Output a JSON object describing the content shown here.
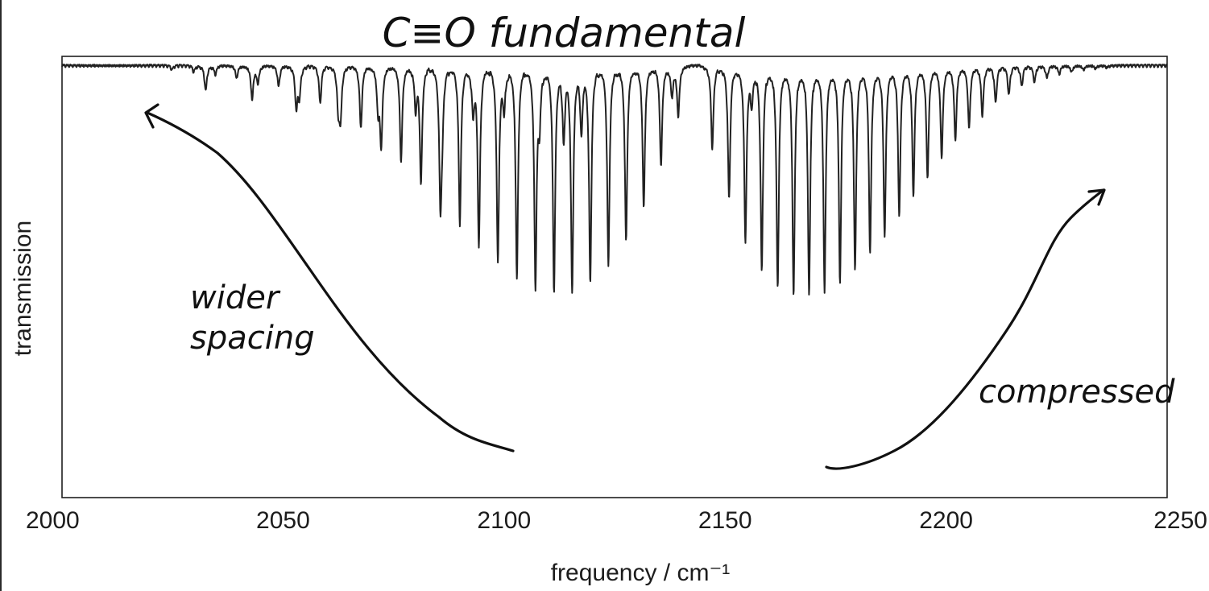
{
  "chart_data": {
    "type": "line",
    "title": "C≡O fundamental",
    "xlabel": "frequency / cm⁻¹",
    "ylabel": "transmission",
    "xlim": [
      2000,
      2250
    ],
    "x_ticks": [
      2000,
      2050,
      2100,
      2150,
      2200,
      2250
    ],
    "y_ticks": [],
    "ylim": [
      0,
      1
    ],
    "grid": false,
    "legend": "none",
    "band_center": 2143,
    "series": [
      {
        "style": "absorption dips",
        "p_branch_lines": [
          {
            "x": 2139.4,
            "y": 0.88
          },
          {
            "x": 2135.5,
            "y": 0.76
          },
          {
            "x": 2131.6,
            "y": 0.66
          },
          {
            "x": 2127.6,
            "y": 0.58
          },
          {
            "x": 2123.6,
            "y": 0.52
          },
          {
            "x": 2119.5,
            "y": 0.48
          },
          {
            "x": 2115.4,
            "y": 0.46
          },
          {
            "x": 2111.3,
            "y": 0.46
          },
          {
            "x": 2107.1,
            "y": 0.47
          },
          {
            "x": 2102.9,
            "y": 0.49
          },
          {
            "x": 2098.6,
            "y": 0.53
          },
          {
            "x": 2094.3,
            "y": 0.57
          },
          {
            "x": 2090.0,
            "y": 0.62
          },
          {
            "x": 2085.6,
            "y": 0.67
          },
          {
            "x": 2081.2,
            "y": 0.72
          },
          {
            "x": 2076.7,
            "y": 0.77
          },
          {
            "x": 2072.2,
            "y": 0.81
          },
          {
            "x": 2067.6,
            "y": 0.85
          },
          {
            "x": 2063.0,
            "y": 0.88
          },
          {
            "x": 2058.4,
            "y": 0.91
          },
          {
            "x": 2053.7,
            "y": 0.93
          },
          {
            "x": 2049.0,
            "y": 0.95
          },
          {
            "x": 2044.3,
            "y": 0.96
          },
          {
            "x": 2039.5,
            "y": 0.97
          },
          {
            "x": 2034.7,
            "y": 0.98
          },
          {
            "x": 2029.8,
            "y": 0.985
          },
          {
            "x": 2024.9,
            "y": 0.99
          }
        ],
        "r_branch_lines": [
          {
            "x": 2147.1,
            "y": 0.8
          },
          {
            "x": 2150.9,
            "y": 0.68
          },
          {
            "x": 2154.6,
            "y": 0.58
          },
          {
            "x": 2158.3,
            "y": 0.51
          },
          {
            "x": 2161.9,
            "y": 0.47
          },
          {
            "x": 2165.5,
            "y": 0.45
          },
          {
            "x": 2169.0,
            "y": 0.45
          },
          {
            "x": 2172.5,
            "y": 0.46
          },
          {
            "x": 2176.0,
            "y": 0.48
          },
          {
            "x": 2179.4,
            "y": 0.51
          },
          {
            "x": 2182.8,
            "y": 0.55
          },
          {
            "x": 2186.1,
            "y": 0.59
          },
          {
            "x": 2189.4,
            "y": 0.64
          },
          {
            "x": 2192.6,
            "y": 0.69
          },
          {
            "x": 2195.8,
            "y": 0.73
          },
          {
            "x": 2199.0,
            "y": 0.78
          },
          {
            "x": 2202.1,
            "y": 0.82
          },
          {
            "x": 2205.2,
            "y": 0.85
          },
          {
            "x": 2208.2,
            "y": 0.88
          },
          {
            "x": 2211.2,
            "y": 0.91
          },
          {
            "x": 2214.2,
            "y": 0.93
          },
          {
            "x": 2217.1,
            "y": 0.95
          },
          {
            "x": 2220.0,
            "y": 0.96
          },
          {
            "x": 2222.8,
            "y": 0.97
          },
          {
            "x": 2225.6,
            "y": 0.98
          },
          {
            "x": 2228.4,
            "y": 0.985
          },
          {
            "x": 2231.1,
            "y": 0.99
          },
          {
            "x": 2233.8,
            "y": 0.993
          },
          {
            "x": 2236.4,
            "y": 0.995
          }
        ],
        "isotope_lines": [
          {
            "x": 2032.5,
            "y": 0.94
          },
          {
            "x": 2043.0,
            "y": 0.92
          },
          {
            "x": 2053.0,
            "y": 0.9
          },
          {
            "x": 2062.5,
            "y": 0.9
          },
          {
            "x": 2071.5,
            "y": 0.9
          },
          {
            "x": 2080.0,
            "y": 0.9
          },
          {
            "x": 2086.0,
            "y": 0.88
          },
          {
            "x": 2093.0,
            "y": 0.89
          },
          {
            "x": 2100.0,
            "y": 0.9
          },
          {
            "x": 2108.0,
            "y": 0.87
          },
          {
            "x": 2113.5,
            "y": 0.83
          },
          {
            "x": 2117.5,
            "y": 0.85
          },
          {
            "x": 2138.0,
            "y": 0.93
          },
          {
            "x": 2156.0,
            "y": 0.92
          }
        ]
      }
    ],
    "annotations": [
      {
        "text": "wider spacing"
      },
      {
        "text": "compressed"
      }
    ]
  }
}
